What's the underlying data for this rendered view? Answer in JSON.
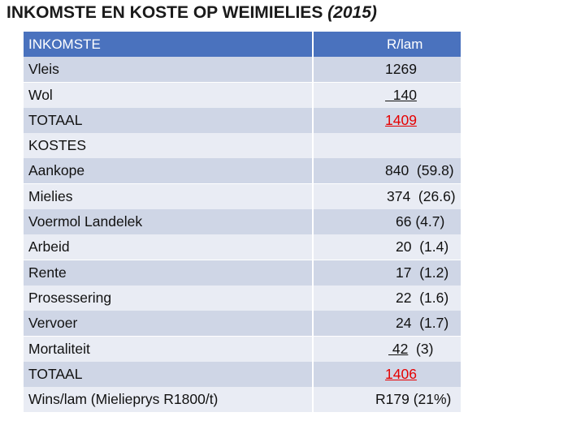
{
  "title": {
    "main": "INKOMSTE EN KOSTE OP WEIMIELIES",
    "year": "(2015)"
  },
  "header": {
    "label": "INKOMSTE",
    "value": "R/lam"
  },
  "rows": [
    {
      "label": "Vleis",
      "value": "1269",
      "style": "plain",
      "indent": 88
    },
    {
      "label": "Wol",
      "value": "  140",
      "style": "underline",
      "indent": 88
    },
    {
      "label": "TOTAAL",
      "value": "1409",
      "style": "red",
      "indent": 88
    },
    {
      "label": "KOSTES",
      "value": "",
      "style": "plain",
      "indent": 88
    },
    {
      "label": "Aankope",
      "value": "840  (59.8)",
      "style": "plain",
      "indent": 88
    },
    {
      "label": "Mielies",
      "value": "374  (26.6)",
      "style": "plain",
      "indent": 90
    },
    {
      "label": "Voermol Landelek",
      "value": "66 (4.7)",
      "style": "plain",
      "indent": 101
    },
    {
      "label": "Arbeid",
      "value": "20  (1.4)",
      "style": "plain",
      "indent": 101
    },
    {
      "label": "Rente",
      "value": "17  (1.2)",
      "style": "plain",
      "indent": 101
    },
    {
      "label": "Prosessering",
      "value": "22  (1.6)",
      "style": "plain",
      "indent": 101
    },
    {
      "label": "Vervoer",
      "value": "24  (1.7)",
      "style": "plain",
      "indent": 101
    },
    {
      "label": "Mortaliteit",
      "value": "42  (3)",
      "style": "underline-first",
      "indent": 92
    },
    {
      "label": "TOTAAL",
      "value": "1406",
      "style": "red",
      "indent": 88
    },
    {
      "label": "Wins/lam  (Mielieprys R1800/t)",
      "value": "R179 (21%)",
      "style": "plain",
      "indent": 76
    }
  ]
}
